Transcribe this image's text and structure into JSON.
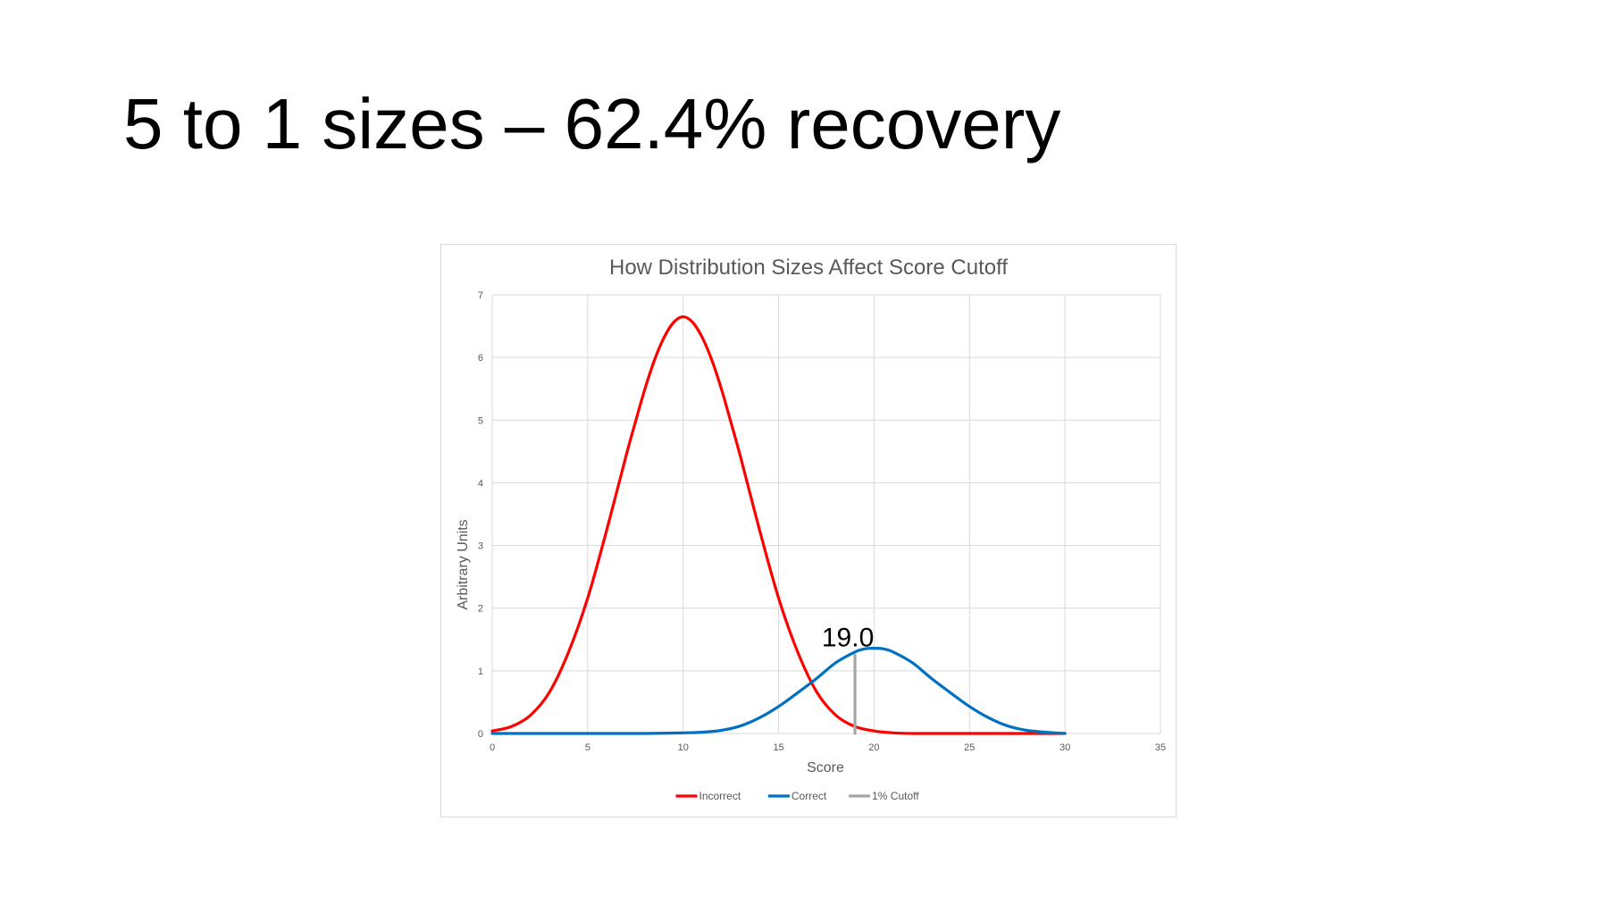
{
  "slide": {
    "title": "5 to 1 sizes – 62.4% recovery"
  },
  "chart_data": {
    "type": "line",
    "title": "How Distribution Sizes Affect Score Cutoff",
    "xlabel": "Score",
    "ylabel": "Arbitrary Units",
    "xlim": [
      0,
      35
    ],
    "ylim": [
      0,
      7
    ],
    "x_ticks": [
      0,
      5,
      10,
      15,
      20,
      25,
      30,
      35
    ],
    "y_ticks": [
      0,
      1,
      2,
      3,
      4,
      5,
      6,
      7
    ],
    "grid": true,
    "legend_position": "bottom",
    "series": [
      {
        "name": "Incorrect",
        "color": "#ff0000",
        "x": [
          0,
          1,
          2,
          3,
          4,
          5,
          6,
          7,
          7.5,
          8,
          8.5,
          9,
          9.5,
          10,
          10.5,
          11,
          11.5,
          12,
          12.5,
          13,
          14,
          15,
          16,
          17,
          18,
          19,
          20,
          21,
          22,
          24,
          26,
          28,
          30
        ],
        "y": [
          0.04,
          0.11,
          0.29,
          0.66,
          1.3,
          2.16,
          3.25,
          4.42,
          4.97,
          5.5,
          5.96,
          6.32,
          6.56,
          6.65,
          6.56,
          6.32,
          5.96,
          5.5,
          4.97,
          4.42,
          3.25,
          2.16,
          1.3,
          0.66,
          0.29,
          0.11,
          0.04,
          0.01,
          0.0,
          0.0,
          0.0,
          0.0,
          0.0
        ]
      },
      {
        "name": "Correct",
        "color": "#0070c0",
        "x": [
          0,
          5,
          8,
          10,
          11,
          12,
          13,
          14,
          15,
          16,
          17,
          18,
          19,
          19.5,
          20,
          20.5,
          21,
          22,
          23,
          24,
          25,
          26,
          27,
          28,
          29,
          30
        ],
        "y": [
          0.0,
          0.0,
          0.0,
          0.01,
          0.02,
          0.05,
          0.12,
          0.25,
          0.43,
          0.65,
          0.88,
          1.13,
          1.3,
          1.35,
          1.36,
          1.35,
          1.3,
          1.13,
          0.88,
          0.65,
          0.43,
          0.25,
          0.12,
          0.05,
          0.02,
          0.0
        ]
      },
      {
        "name": "1% Cutoff",
        "color": "#a6a6a6",
        "x": [
          19.0,
          19.0
        ],
        "y": [
          0,
          1.25
        ]
      }
    ],
    "annotations": [
      {
        "text": "19.0",
        "x": 19.0,
        "y": 1.25
      }
    ]
  }
}
